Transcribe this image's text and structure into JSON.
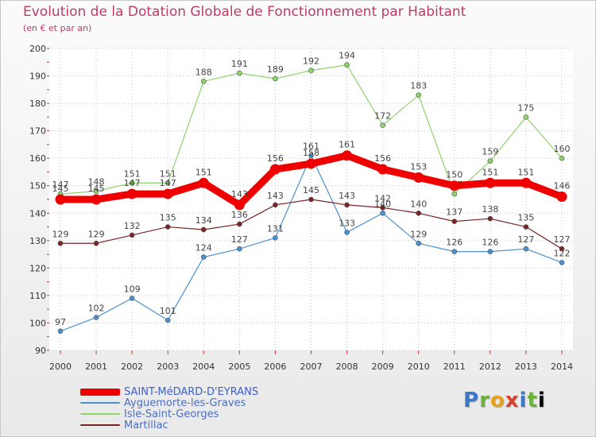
{
  "title": "Evolution de la Dotation Globale de Fonctionnement par Habitant",
  "subtitle": "(en € et par an)",
  "brand": "Proxiti",
  "chart_data": {
    "type": "line",
    "x": [
      2000,
      2001,
      2002,
      2003,
      2004,
      2005,
      2006,
      2007,
      2008,
      2009,
      2010,
      2011,
      2012,
      2013,
      2014
    ],
    "ylim": [
      90,
      200
    ],
    "yticks": [
      90,
      100,
      110,
      120,
      130,
      140,
      150,
      160,
      170,
      180,
      190,
      200
    ],
    "grid": true,
    "legend_position": "bottom-left",
    "series": [
      {
        "name": "SAINT-MéDARD-D'EYRANS",
        "color": "#ee0000",
        "highlight": true,
        "values": [
          145,
          145,
          147,
          147,
          151,
          143,
          156,
          158,
          161,
          156,
          153,
          150,
          151,
          151,
          146
        ]
      },
      {
        "name": "Ayguemorte-les-Graves",
        "color": "#4a90cf",
        "values": [
          97,
          102,
          109,
          101,
          124,
          127,
          131,
          161,
          133,
          140,
          129,
          126,
          126,
          127,
          122
        ]
      },
      {
        "name": "Isle-Saint-Georges",
        "color": "#8cd36a",
        "values": [
          147,
          148,
          151,
          151,
          188,
          191,
          189,
          192,
          194,
          172,
          183,
          147,
          159,
          175,
          160
        ]
      },
      {
        "name": "Martillac",
        "color": "#7a2424",
        "values": [
          129,
          129,
          132,
          135,
          134,
          136,
          143,
          145,
          143,
          142,
          140,
          137,
          138,
          135,
          127
        ]
      }
    ]
  }
}
